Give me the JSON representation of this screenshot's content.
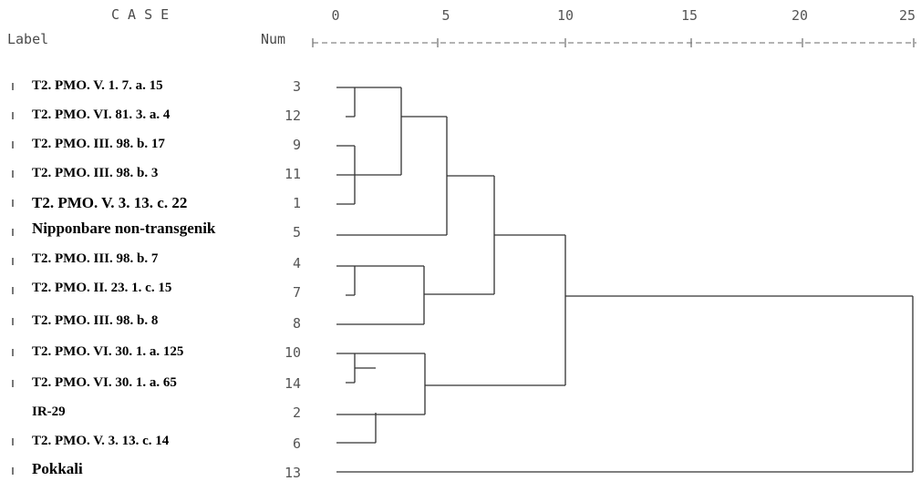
{
  "header": {
    "case_title": "C A S E",
    "label_title": "Label",
    "num_title": "Num",
    "scale_line": "+---------+---------+---------+---------+---------+"
  },
  "scale": {
    "ticks": [
      "0",
      "5",
      "10",
      "15",
      "20",
      "25"
    ]
  },
  "rows": [
    {
      "label": "T2. PMO. V. 1. 7. a. 15",
      "num": "3"
    },
    {
      "label": "T2. PMO. VI. 81. 3. a. 4",
      "num": "12"
    },
    {
      "label": "T2. PMO. III. 98. b. 17",
      "num": "9"
    },
    {
      "label": "T2. PMO. III. 98. b. 3",
      "num": "11"
    },
    {
      "label": "T2. PMO. V. 3. 13. c. 22",
      "num": "1"
    },
    {
      "label": "Nipponbare non-transgenik",
      "num": "5"
    },
    {
      "label": "T2. PMO. III. 98. b. 7",
      "num": "4"
    },
    {
      "label": "T2. PMO. II. 23. 1. c. 15",
      "num": "7"
    },
    {
      "label": "T2. PMO. III. 98. b. 8",
      "num": "8"
    },
    {
      "label": "T2. PMO. VI. 30. 1. a. 125",
      "num": "10"
    },
    {
      "label": "T2. PMO. VI. 30. 1. a. 65",
      "num": "14"
    },
    {
      "label": "IR-29",
      "num": "2"
    },
    {
      "label": "T2. PMO. V. 3. 13. c. 14",
      "num": "6"
    },
    {
      "label": "Pokkali",
      "num": "13"
    }
  ]
}
